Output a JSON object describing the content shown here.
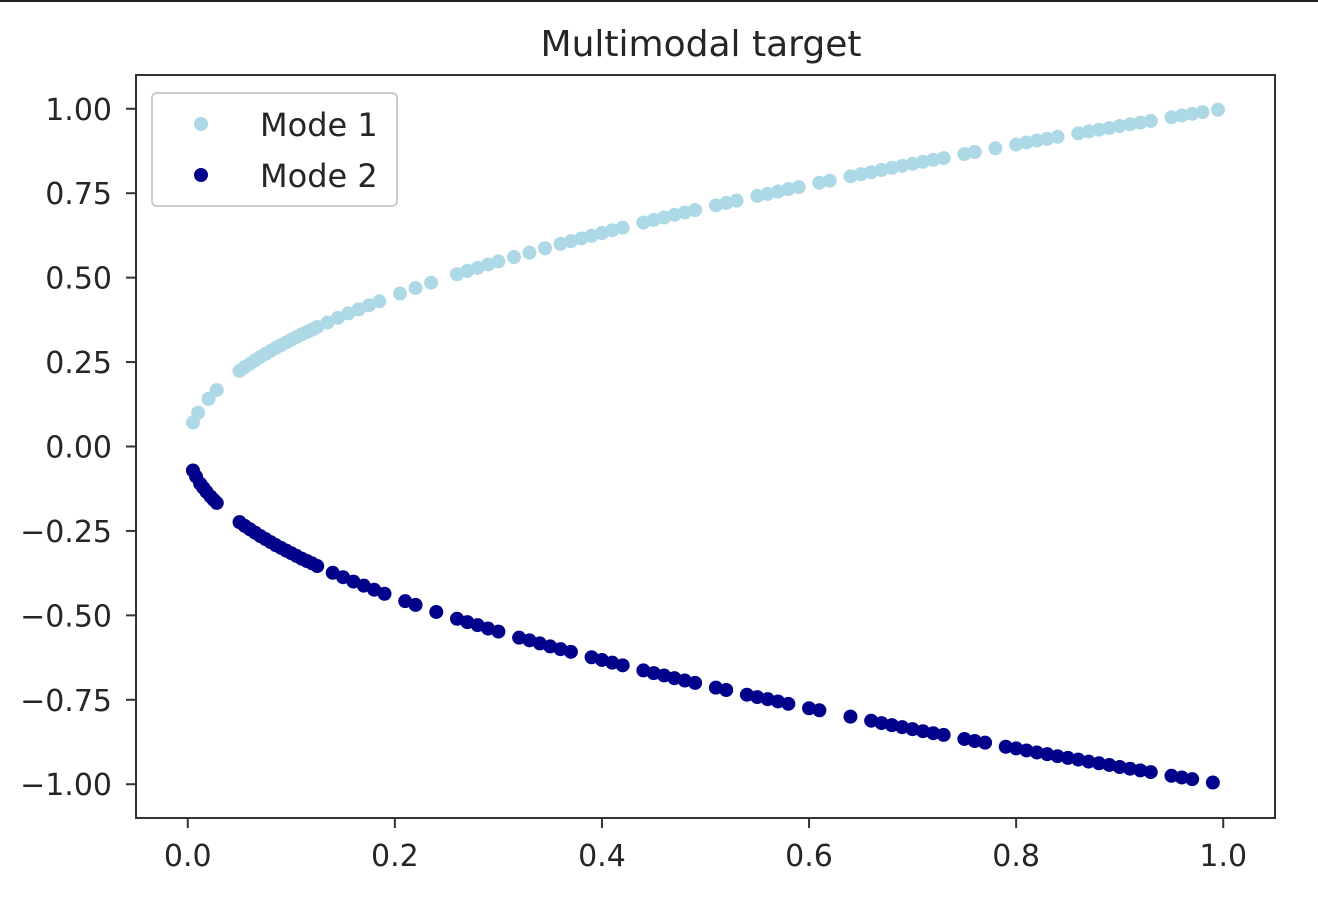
{
  "chart_data": {
    "type": "scatter",
    "title": "Multimodal target",
    "xlabel": "",
    "ylabel": "",
    "xlim": [
      -0.05,
      1.05
    ],
    "ylim": [
      -1.1,
      1.1
    ],
    "xticks": [
      0.0,
      0.2,
      0.4,
      0.6,
      0.8,
      1.0
    ],
    "xtick_labels": [
      "0.0",
      "0.2",
      "0.4",
      "0.6",
      "0.8",
      "1.0"
    ],
    "yticks": [
      1.0,
      0.75,
      0.5,
      0.25,
      0.0,
      -0.25,
      -0.5,
      -0.75,
      -1.0
    ],
    "ytick_labels": [
      "1.00",
      "0.75",
      "0.50",
      "0.25",
      "0.00",
      "−0.25",
      "−0.50",
      "−0.75",
      "−1.00"
    ],
    "grid": false,
    "legend_position": "top-left",
    "series": [
      {
        "name": "Mode 1",
        "color": "#add8e6",
        "x": [
          0.005,
          0.01,
          0.02,
          0.028,
          0.05,
          0.055,
          0.06,
          0.065,
          0.07,
          0.075,
          0.08,
          0.085,
          0.09,
          0.095,
          0.1,
          0.105,
          0.11,
          0.115,
          0.12,
          0.125,
          0.135,
          0.145,
          0.155,
          0.165,
          0.175,
          0.185,
          0.205,
          0.22,
          0.235,
          0.26,
          0.27,
          0.28,
          0.29,
          0.3,
          0.315,
          0.33,
          0.345,
          0.36,
          0.37,
          0.38,
          0.39,
          0.4,
          0.41,
          0.42,
          0.44,
          0.45,
          0.46,
          0.47,
          0.48,
          0.49,
          0.51,
          0.52,
          0.53,
          0.55,
          0.56,
          0.57,
          0.58,
          0.59,
          0.61,
          0.62,
          0.64,
          0.65,
          0.66,
          0.67,
          0.68,
          0.69,
          0.7,
          0.71,
          0.72,
          0.73,
          0.75,
          0.76,
          0.78,
          0.8,
          0.81,
          0.82,
          0.83,
          0.84,
          0.86,
          0.87,
          0.88,
          0.89,
          0.9,
          0.91,
          0.92,
          0.93,
          0.95,
          0.96,
          0.97,
          0.98,
          0.995
        ],
        "y": [
          0.071,
          0.1,
          0.141,
          0.167,
          0.224,
          0.235,
          0.245,
          0.255,
          0.265,
          0.274,
          0.283,
          0.292,
          0.3,
          0.308,
          0.316,
          0.324,
          0.332,
          0.339,
          0.346,
          0.354,
          0.367,
          0.381,
          0.394,
          0.406,
          0.418,
          0.43,
          0.453,
          0.469,
          0.485,
          0.51,
          0.52,
          0.529,
          0.539,
          0.548,
          0.561,
          0.574,
          0.587,
          0.6,
          0.608,
          0.616,
          0.624,
          0.632,
          0.64,
          0.648,
          0.663,
          0.671,
          0.678,
          0.686,
          0.693,
          0.7,
          0.714,
          0.721,
          0.728,
          0.742,
          0.748,
          0.755,
          0.762,
          0.768,
          0.781,
          0.787,
          0.8,
          0.806,
          0.812,
          0.819,
          0.825,
          0.831,
          0.837,
          0.843,
          0.849,
          0.854,
          0.866,
          0.872,
          0.883,
          0.894,
          0.9,
          0.906,
          0.911,
          0.917,
          0.927,
          0.933,
          0.938,
          0.943,
          0.949,
          0.954,
          0.959,
          0.964,
          0.975,
          0.98,
          0.985,
          0.99,
          0.997
        ]
      },
      {
        "name": "Mode 2",
        "color": "#00008b",
        "x": [
          0.005,
          0.008,
          0.012,
          0.015,
          0.018,
          0.022,
          0.025,
          0.028,
          0.05,
          0.055,
          0.06,
          0.065,
          0.07,
          0.075,
          0.08,
          0.085,
          0.09,
          0.095,
          0.1,
          0.105,
          0.11,
          0.115,
          0.12,
          0.125,
          0.14,
          0.15,
          0.16,
          0.17,
          0.18,
          0.19,
          0.21,
          0.22,
          0.24,
          0.26,
          0.27,
          0.28,
          0.29,
          0.3,
          0.32,
          0.33,
          0.34,
          0.35,
          0.36,
          0.37,
          0.39,
          0.4,
          0.41,
          0.42,
          0.44,
          0.45,
          0.46,
          0.47,
          0.48,
          0.49,
          0.51,
          0.52,
          0.54,
          0.55,
          0.56,
          0.57,
          0.58,
          0.6,
          0.61,
          0.64,
          0.66,
          0.67,
          0.68,
          0.69,
          0.7,
          0.71,
          0.72,
          0.73,
          0.75,
          0.76,
          0.77,
          0.79,
          0.8,
          0.81,
          0.82,
          0.83,
          0.84,
          0.85,
          0.86,
          0.87,
          0.88,
          0.89,
          0.9,
          0.91,
          0.92,
          0.93,
          0.95,
          0.96,
          0.97,
          0.99
        ],
        "y": [
          -0.071,
          -0.089,
          -0.11,
          -0.122,
          -0.134,
          -0.148,
          -0.158,
          -0.167,
          -0.224,
          -0.235,
          -0.245,
          -0.255,
          -0.265,
          -0.274,
          -0.283,
          -0.292,
          -0.3,
          -0.308,
          -0.316,
          -0.324,
          -0.332,
          -0.339,
          -0.346,
          -0.354,
          -0.374,
          -0.387,
          -0.4,
          -0.412,
          -0.424,
          -0.436,
          -0.458,
          -0.469,
          -0.49,
          -0.51,
          -0.52,
          -0.529,
          -0.539,
          -0.548,
          -0.566,
          -0.574,
          -0.583,
          -0.592,
          -0.6,
          -0.608,
          -0.624,
          -0.632,
          -0.64,
          -0.648,
          -0.663,
          -0.671,
          -0.678,
          -0.686,
          -0.693,
          -0.7,
          -0.714,
          -0.721,
          -0.735,
          -0.742,
          -0.748,
          -0.755,
          -0.762,
          -0.775,
          -0.781,
          -0.8,
          -0.812,
          -0.819,
          -0.825,
          -0.831,
          -0.837,
          -0.843,
          -0.849,
          -0.854,
          -0.866,
          -0.872,
          -0.877,
          -0.889,
          -0.894,
          -0.9,
          -0.906,
          -0.911,
          -0.917,
          -0.922,
          -0.927,
          -0.933,
          -0.938,
          -0.943,
          -0.949,
          -0.954,
          -0.959,
          -0.964,
          -0.975,
          -0.98,
          -0.985,
          -0.995
        ]
      }
    ]
  }
}
